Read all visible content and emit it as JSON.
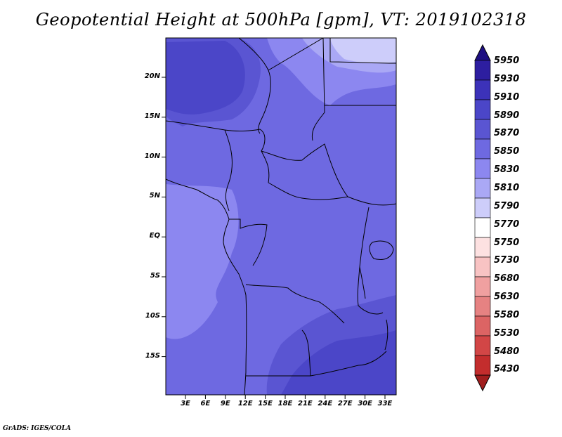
{
  "title": "Geopotential Height at 500hPa [gpm], VT: 2019102318",
  "credit": "GrADS: IGES/COLA",
  "lat_labels": [
    "20N",
    "15N",
    "10N",
    "5N",
    "EQ",
    "5S",
    "10S",
    "15S"
  ],
  "lon_labels": [
    "3E",
    "6E",
    "9E",
    "12E",
    "15E",
    "18E",
    "21E",
    "24E",
    "27E",
    "30E",
    "33E"
  ],
  "colorbar": {
    "levels": [
      "5950",
      "5930",
      "5910",
      "5890",
      "5870",
      "5850",
      "5830",
      "5810",
      "5790",
      "5770",
      "5750",
      "5730",
      "5680",
      "5630",
      "5580",
      "5530",
      "5480",
      "5430"
    ],
    "colors": [
      "#1e0f82",
      "#2d1ea0",
      "#3c32b9",
      "#4b46c8",
      "#5a55d2",
      "#6e69e1",
      "#8c87f0",
      "#aaa8f5",
      "#cdcdfa",
      "#ffffff",
      "#fde1e1",
      "#f8c3c3",
      "#f0a0a0",
      "#e68282",
      "#dc6464",
      "#d24646",
      "#c32d2d",
      "#a01e1e"
    ]
  },
  "map_colors": {
    "base": "#6e69e1",
    "darker": "#5a55d2",
    "darkest": "#4b46c8",
    "lighter": "#8c87f0",
    "lightest": "#aaa8f5",
    "palest": "#cdcdfa"
  }
}
